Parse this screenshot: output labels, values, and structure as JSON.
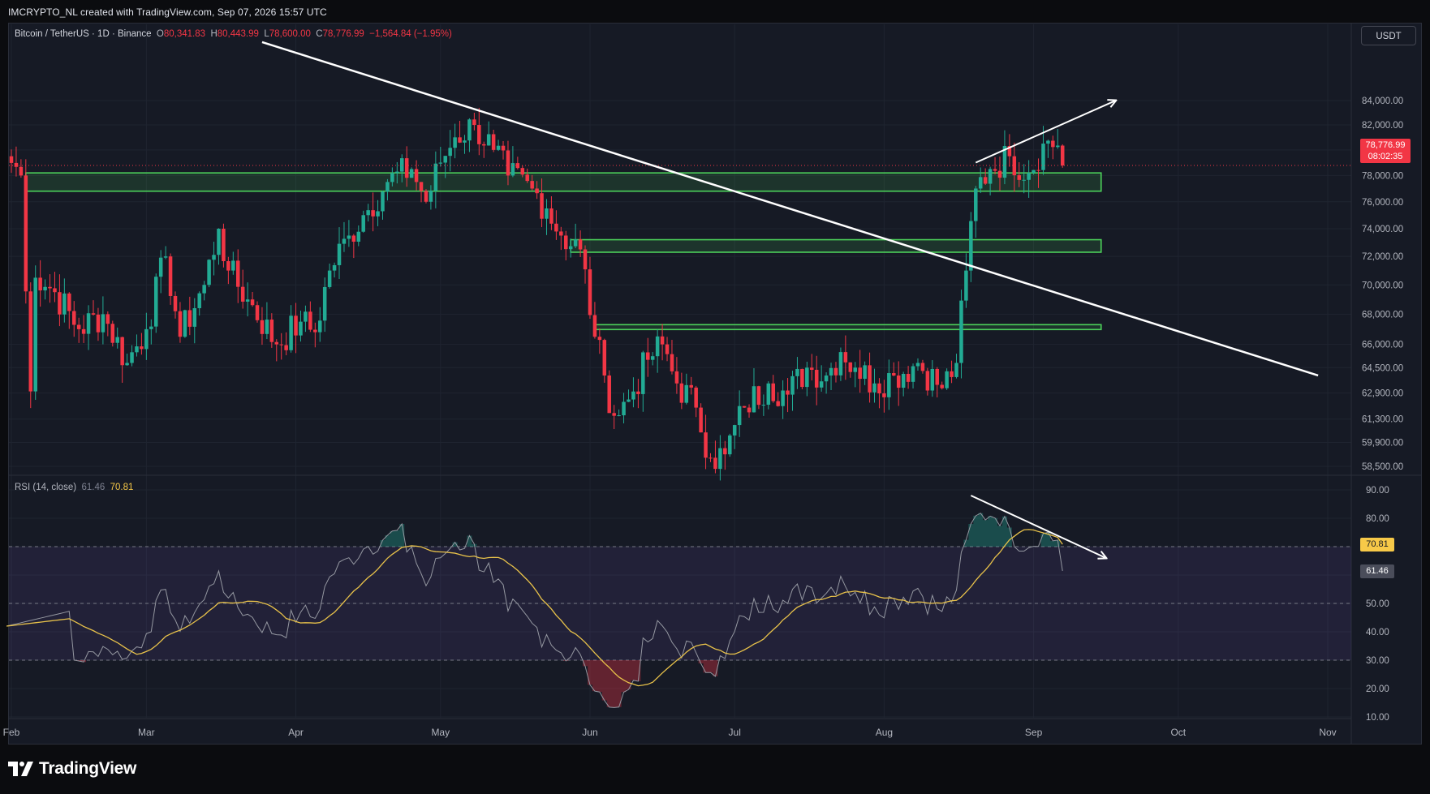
{
  "header": {
    "attribution": "IMCRYPTO_NL created with TradingView.com, Sep 07, 2026 15:57 UTC"
  },
  "legend": {
    "symbol": "Bitcoin / TetherUS · 1D · Binance",
    "o_label": "O",
    "open": "80,341.83",
    "h_label": "H",
    "high": "80,443.99",
    "l_label": "L",
    "low": "78,600.00",
    "c_label": "C",
    "close": "78,776.99",
    "change": "−1,564.84 (−1.95%)"
  },
  "currency_button": "USDT",
  "price_badge": {
    "price": "78,776.99",
    "countdown": "08:02:35"
  },
  "rsi_legend": {
    "name": "RSI (14, close)",
    "rsi": "61.46",
    "ma": "70.81"
  },
  "rsi_badges": {
    "ma": "70.81",
    "rsi": "61.46"
  },
  "branding": {
    "logo_text": "TradingView"
  },
  "colors": {
    "up": "#22ab94",
    "down": "#f23645",
    "zone": "#4cd15a",
    "trendline": "#ffffff",
    "rsi_ma": "#e8c24a",
    "rsi_line": "#9598a1",
    "background": "#161a25"
  },
  "chart_data": [
    {
      "type": "candlestick",
      "title": "Bitcoin / TetherUS · 1D · Binance",
      "y_tick_labels": [
        "84,000.00",
        "82,000.00",
        "80,000.00",
        "78,000.00",
        "76,000.00",
        "74,000.00",
        "72,000.00",
        "70,000.00",
        "68,000.00",
        "66,000.00",
        "64,500.00",
        "62,900.00",
        "61,300.00",
        "59,900.00",
        "58,500.00"
      ],
      "y_ticks": [
        84000,
        82000,
        80000,
        78000,
        76000,
        74000,
        72000,
        70000,
        68000,
        66000,
        64500,
        62900,
        61300,
        59900,
        58500
      ],
      "x_tick_labels": [
        "Feb",
        "Mar",
        "Apr",
        "May",
        "Jun",
        "Jul",
        "Aug",
        "Sep",
        "Oct",
        "Nov"
      ],
      "x_ticks": [
        "2026-02-01",
        "2026-03-01",
        "2026-04-01",
        "2026-05-01",
        "2026-06-01",
        "2026-07-01",
        "2026-08-01",
        "2026-09-01",
        "2026-10-01",
        "2026-11-01"
      ],
      "scale": "log",
      "last_price": 78776.99,
      "ohlc_summary": {
        "open": 80341.83,
        "high": 80443.99,
        "low": 78600.0,
        "close": 78776.99
      },
      "anchor_closes": [
        [
          "2026-01-31",
          79500
        ],
        [
          "2026-02-03",
          78000
        ],
        [
          "2026-02-05",
          63000
        ],
        [
          "2026-02-06",
          70500
        ],
        [
          "2026-02-10",
          69500
        ],
        [
          "2026-02-15",
          67000
        ],
        [
          "2026-02-20",
          68000
        ],
        [
          "2026-02-25",
          64800
        ],
        [
          "2026-03-01",
          67000
        ],
        [
          "2026-03-05",
          72000
        ],
        [
          "2026-03-08",
          66500
        ],
        [
          "2026-03-13",
          70000
        ],
        [
          "2026-03-16",
          74000
        ],
        [
          "2026-03-18",
          71000
        ],
        [
          "2026-03-22",
          69000
        ],
        [
          "2026-03-28",
          66000
        ],
        [
          "2026-04-02",
          67500
        ],
        [
          "2026-04-05",
          66800
        ],
        [
          "2026-04-08",
          71000
        ],
        [
          "2026-04-12",
          73500
        ],
        [
          "2026-04-15",
          75000
        ],
        [
          "2026-04-20",
          77500
        ],
        [
          "2026-04-25",
          78500
        ],
        [
          "2026-04-28",
          76000
        ],
        [
          "2026-05-01",
          79000
        ],
        [
          "2026-05-04",
          81000
        ],
        [
          "2026-05-08",
          82000
        ],
        [
          "2026-05-12",
          80000
        ],
        [
          "2026-05-15",
          78000
        ],
        [
          "2026-05-20",
          77000
        ],
        [
          "2026-05-23",
          75500
        ],
        [
          "2026-05-26",
          73500
        ],
        [
          "2026-05-30",
          72500
        ],
        [
          "2026-06-02",
          66500
        ],
        [
          "2026-06-04",
          64000
        ],
        [
          "2026-06-06",
          61500
        ],
        [
          "2026-06-09",
          62500
        ],
        [
          "2026-06-13",
          65000
        ],
        [
          "2026-06-16",
          66000
        ],
        [
          "2026-06-19",
          63500
        ],
        [
          "2026-06-23",
          62000
        ],
        [
          "2026-06-26",
          59000
        ],
        [
          "2026-06-29",
          59200
        ],
        [
          "2026-07-03",
          62000
        ],
        [
          "2026-07-08",
          63500
        ],
        [
          "2026-07-12",
          62800
        ],
        [
          "2026-07-16",
          64500
        ],
        [
          "2026-07-20",
          64000
        ],
        [
          "2026-07-23",
          65500
        ],
        [
          "2026-07-26",
          64500
        ],
        [
          "2026-07-30",
          63500
        ],
        [
          "2026-08-03",
          64000
        ],
        [
          "2026-08-08",
          64800
        ],
        [
          "2026-08-13",
          63200
        ],
        [
          "2026-08-16",
          64800
        ],
        [
          "2026-08-18",
          71000
        ],
        [
          "2026-08-20",
          77000
        ],
        [
          "2026-08-23",
          78500
        ],
        [
          "2026-08-27",
          79500
        ],
        [
          "2026-08-31",
          78200
        ],
        [
          "2026-09-03",
          80500
        ],
        [
          "2026-09-06",
          80341.83
        ],
        [
          "2026-09-07",
          78776.99
        ]
      ],
      "zones": [
        {
          "from": "2026-02-04",
          "to": "2026-09-15",
          "low": 76800,
          "high": 78200
        },
        {
          "from": "2026-05-28",
          "to": "2026-09-15",
          "low": 72300,
          "high": 73200
        },
        {
          "from": "2026-06-02",
          "to": "2026-09-15",
          "low": 67000,
          "high": 67300
        }
      ],
      "trendlines": [
        {
          "from": [
            "2026-03-25",
            89000
          ],
          "to": [
            "2026-10-30",
            64000
          ]
        },
        {
          "from": [
            "2026-08-20",
            79000
          ],
          "to": [
            "2026-09-18",
            84000
          ],
          "arrow": true
        }
      ]
    },
    {
      "type": "line",
      "title": "RSI (14, close)",
      "y_tick_labels": [
        "90.00",
        "80.00",
        "70.00",
        "60.00",
        "50.00",
        "40.00",
        "30.00",
        "20.00",
        "10.00"
      ],
      "y_ticks": [
        90,
        80,
        70,
        60,
        50,
        40,
        30,
        20,
        10
      ],
      "ylim": [
        7,
        93
      ],
      "bands": {
        "upper": 70,
        "middle": 50,
        "lower": 30
      },
      "series": [
        {
          "name": "RSI",
          "last": 61.46
        },
        {
          "name": "RSI-based MA",
          "last": 70.81
        }
      ],
      "trendlines": [
        {
          "from": [
            "2026-08-19",
            88
          ],
          "to": [
            "2026-09-16",
            66
          ],
          "arrow": true
        }
      ]
    }
  ]
}
